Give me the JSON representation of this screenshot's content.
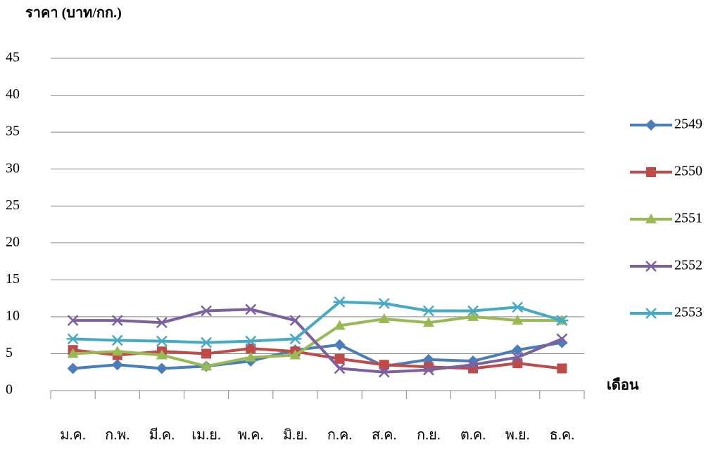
{
  "chart_data": {
    "type": "line",
    "y_label": "ราคา (บาท/กก.)",
    "x_label": "เดือน",
    "categories": [
      "ม.ค.",
      "ก.พ.",
      "มี.ค.",
      "เม.ย.",
      "พ.ค.",
      "มิ.ย.",
      "ก.ค.",
      "ส.ค.",
      "ก.ย.",
      "ต.ค.",
      "พ.ย.",
      "ธ.ค."
    ],
    "ylim": [
      0,
      45
    ],
    "yticks": [
      0,
      5,
      10,
      15,
      20,
      25,
      30,
      35,
      40,
      45
    ],
    "grid": true,
    "legend": "right",
    "series": [
      {
        "name": "2549",
        "color": "#4a7ebb",
        "marker": "diamond",
        "values": [
          3,
          3.5,
          3,
          3.3,
          4,
          5.5,
          6.2,
          3.3,
          4.2,
          4,
          5.5,
          6.5
        ]
      },
      {
        "name": "2550",
        "color": "#be4b48",
        "marker": "square",
        "values": [
          5.5,
          4.8,
          5.3,
          5,
          5.7,
          5.3,
          4.3,
          3.5,
          3.2,
          3,
          3.7,
          3
        ]
      },
      {
        "name": "2551",
        "color": "#98b954",
        "marker": "triangle",
        "values": [
          5,
          5.3,
          4.8,
          3.3,
          4.5,
          4.8,
          8.8,
          9.7,
          9.2,
          10,
          9.5,
          9.5
        ]
      },
      {
        "name": "2552",
        "color": "#7d60a0",
        "marker": "x",
        "values": [
          9.5,
          9.5,
          9.2,
          10.8,
          11,
          9.5,
          3,
          2.5,
          2.8,
          3.5,
          4.5,
          7
        ]
      },
      {
        "name": "2553",
        "color": "#46aac5",
        "marker": "star",
        "values": [
          7,
          6.8,
          6.7,
          6.5,
          6.7,
          7,
          12,
          11.8,
          10.8,
          10.8,
          11.3,
          9.5
        ]
      }
    ]
  }
}
